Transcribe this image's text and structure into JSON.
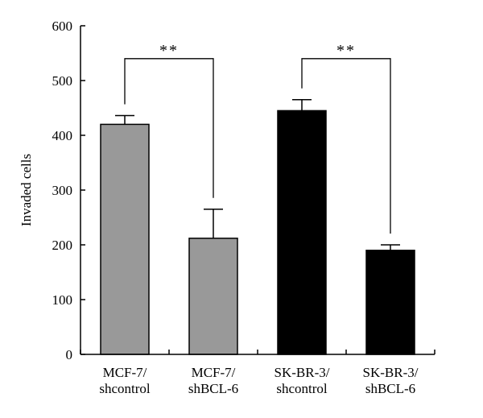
{
  "chart_data": {
    "type": "bar",
    "title": "",
    "xlabel": "",
    "ylabel": "Invaded cells",
    "ylim": [
      0,
      600
    ],
    "yticks": [
      "0",
      "100",
      "200",
      "300",
      "400",
      "500",
      "600"
    ],
    "categories": [
      [
        "MCF-7/",
        "shcontrol"
      ],
      [
        "MCF-7/",
        "shBCL-6"
      ],
      [
        "SK-BR-3/",
        "shcontrol"
      ],
      [
        "SK-BR-3/",
        "shBCL-6"
      ]
    ],
    "values": [
      420,
      212,
      445,
      190
    ],
    "errors": [
      16,
      53,
      20,
      10
    ],
    "bar_colors": [
      "#999999",
      "#999999",
      "#000000",
      "#000000"
    ],
    "significance": [
      {
        "from": 0,
        "to": 1,
        "label": "**",
        "level": 540
      },
      {
        "from": 2,
        "to": 3,
        "label": "**",
        "level": 540
      }
    ],
    "grid": false,
    "legend": "none"
  }
}
